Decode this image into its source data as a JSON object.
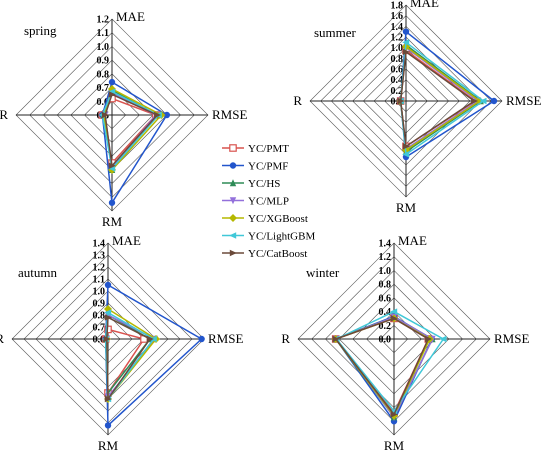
{
  "figure": {
    "legend_entries": [
      {
        "name": "YC/PMT",
        "color": "#d9534f",
        "marker": "square"
      },
      {
        "name": "YC/PMF",
        "color": "#2255cc",
        "marker": "circle"
      },
      {
        "name": "YC/HS",
        "color": "#2e8b57",
        "marker": "triangle-up"
      },
      {
        "name": "YC/MLP",
        "color": "#9370db",
        "marker": "triangle-down"
      },
      {
        "name": "YC/XGBoost",
        "color": "#b5b800",
        "marker": "diamond"
      },
      {
        "name": "YC/LightGBM",
        "color": "#40c8d8",
        "marker": "triangle-left"
      },
      {
        "name": "YC/CatBoost",
        "color": "#6b4a3a",
        "marker": "triangle-right"
      }
    ],
    "legend_placement": "center"
  },
  "chart_data": [
    {
      "type": "radar",
      "title": "spring",
      "axes": [
        "MAE",
        "RMSE",
        "RM",
        "R"
      ],
      "tick_labels": [
        "0.5",
        "0.6",
        "0.7",
        "0.8",
        "0.9",
        "1.0",
        "1.1",
        "1.2"
      ],
      "range": [
        0.5,
        1.2
      ],
      "grid": true,
      "series": [
        {
          "name": "YC/PMT",
          "values": [
            0.62,
            0.82,
            0.85,
            0.57
          ]
        },
        {
          "name": "YC/PMF",
          "values": [
            0.74,
            0.9,
            1.14,
            0.57
          ]
        },
        {
          "name": "YC/HS",
          "values": [
            0.68,
            0.83,
            0.9,
            0.56
          ]
        },
        {
          "name": "YC/MLP",
          "values": [
            0.66,
            0.82,
            0.88,
            0.55
          ]
        },
        {
          "name": "YC/XGBoost",
          "values": [
            0.69,
            0.86,
            0.9,
            0.56
          ]
        },
        {
          "name": "YC/LightGBM",
          "values": [
            0.67,
            0.84,
            0.89,
            0.57
          ]
        },
        {
          "name": "YC/CatBoost",
          "values": [
            0.65,
            0.83,
            0.87,
            0.55
          ]
        }
      ]
    },
    {
      "type": "radar",
      "title": "summer",
      "axes": [
        "MAE",
        "RMSE",
        "RM",
        "R"
      ],
      "tick_labels": [
        "0.0",
        "0.2",
        "0.4",
        "0.6",
        "0.8",
        "1.0",
        "1.2",
        "1.4",
        "1.6",
        "1.8"
      ],
      "range": [
        0.0,
        1.8
      ],
      "grid": true,
      "series": [
        {
          "name": "YC/PMT",
          "values": [
            0.95,
            1.3,
            0.85,
            0.1
          ]
        },
        {
          "name": "YC/PMF",
          "values": [
            1.3,
            1.65,
            1.05,
            0.1
          ]
        },
        {
          "name": "YC/HS",
          "values": [
            1.05,
            1.4,
            0.95,
            0.1
          ]
        },
        {
          "name": "YC/MLP",
          "values": [
            1.0,
            1.35,
            0.9,
            0.1
          ]
        },
        {
          "name": "YC/XGBoost",
          "values": [
            1.02,
            1.38,
            0.92,
            0.1
          ]
        },
        {
          "name": "YC/LightGBM",
          "values": [
            1.1,
            1.45,
            1.0,
            0.1
          ]
        },
        {
          "name": "YC/CatBoost",
          "values": [
            0.92,
            1.28,
            0.85,
            0.1
          ]
        }
      ]
    },
    {
      "type": "radar",
      "title": "autumn",
      "axes": [
        "MAE",
        "RMSE",
        "RM",
        "R"
      ],
      "tick_labels": [
        "0.6",
        "0.7",
        "0.8",
        "0.9",
        "1.0",
        "1.1",
        "1.2",
        "1.3",
        "1.4"
      ],
      "range": [
        0.6,
        1.4
      ],
      "grid": true,
      "series": [
        {
          "name": "YC/PMT",
          "values": [
            0.68,
            0.9,
            1.05,
            0.62
          ]
        },
        {
          "name": "YC/PMF",
          "values": [
            1.05,
            1.38,
            1.32,
            0.62
          ]
        },
        {
          "name": "YC/HS",
          "values": [
            0.8,
            0.95,
            1.05,
            0.62
          ]
        },
        {
          "name": "YC/MLP",
          "values": [
            0.8,
            0.99,
            1.08,
            0.61
          ]
        },
        {
          "name": "YC/XGBoost",
          "values": [
            0.85,
            1.0,
            1.1,
            0.61
          ]
        },
        {
          "name": "YC/LightGBM",
          "values": [
            0.82,
            0.98,
            1.1,
            0.62
          ]
        },
        {
          "name": "YC/CatBoost",
          "values": [
            0.78,
            0.95,
            1.1,
            0.61
          ]
        }
      ]
    },
    {
      "type": "radar",
      "title": "winter",
      "axes": [
        "MAE",
        "RMSE",
        "RM",
        "R"
      ],
      "tick_labels": [
        "0.0",
        "0.2",
        "0.4",
        "0.6",
        "0.8",
        "1.0",
        "1.2",
        "1.4"
      ],
      "range": [
        0.0,
        1.4
      ],
      "grid": true,
      "series": [
        {
          "name": "YC/PMT",
          "values": [
            0.3,
            0.5,
            1.08,
            0.85
          ]
        },
        {
          "name": "YC/PMF",
          "values": [
            0.33,
            0.55,
            1.2,
            0.85
          ]
        },
        {
          "name": "YC/HS",
          "values": [
            0.32,
            0.56,
            1.14,
            0.85
          ]
        },
        {
          "name": "YC/MLP",
          "values": [
            0.32,
            0.56,
            1.14,
            0.84
          ]
        },
        {
          "name": "YC/XGBoost",
          "values": [
            0.3,
            0.52,
            1.12,
            0.85
          ]
        },
        {
          "name": "YC/LightGBM",
          "values": [
            0.4,
            0.72,
            1.05,
            0.84
          ]
        },
        {
          "name": "YC/CatBoost",
          "values": [
            0.3,
            0.5,
            1.1,
            0.85
          ]
        }
      ]
    }
  ]
}
